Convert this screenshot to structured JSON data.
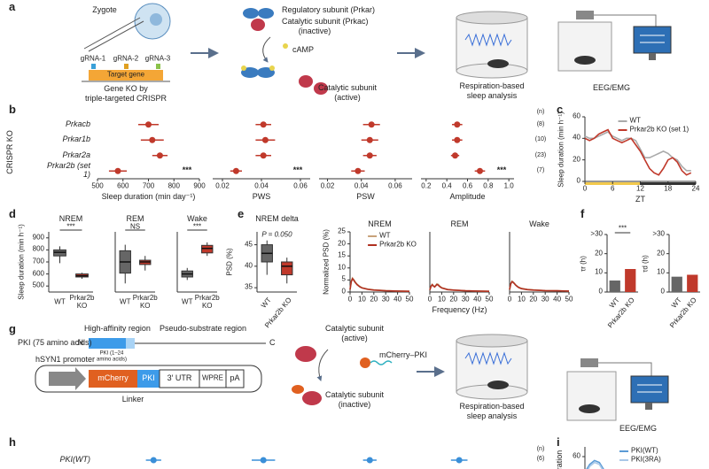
{
  "panel_labels": [
    "a",
    "b",
    "c",
    "d",
    "e",
    "f",
    "g",
    "h",
    "i"
  ],
  "a": {
    "zygote": "Zygote",
    "grnas": [
      "gRNA-1",
      "gRNA-2",
      "gRNA-3"
    ],
    "target_gene": "Target gene",
    "ko_caption": [
      "Gene KO by",
      "triple-targeted CRISPR"
    ],
    "regulatory": "Regulatory subunit (Prkar)",
    "catalytic_inactive": [
      "Catalytic subunit (Prkac)",
      "(inactive)"
    ],
    "camp": "cAMP",
    "catalytic_active": [
      "Catalytic subunit",
      "(active)"
    ],
    "respiration": [
      "Respiration-based",
      "sleep analysis"
    ],
    "eeg": "EEG/EMG"
  },
  "b": {
    "group_label": "CRISPR KO",
    "n_header": "(n)",
    "n": [
      "(8)",
      "(10)",
      "(23)",
      "(7)"
    ]
  },
  "g": {
    "high_affinity": "High-affinity region",
    "pseudo_substrate": "Pseudo-substrate region",
    "pki_length": "PKI (75 amino acids)",
    "n_term": "N",
    "c_term": "C",
    "pki_fragment": [
      "PKI (1–24",
      "amino acids)"
    ],
    "promoter": "hSYN1 promoter",
    "construct": [
      "mCherry",
      "PKI",
      "3′ UTR",
      "WPRE",
      "pA"
    ],
    "linker": "Linker",
    "catalytic_active": [
      "Catalytic subunit",
      "(active)"
    ],
    "fusion": "mCherry–PKI",
    "catalytic_inactive": [
      "Catalytic subunit",
      "(inactive)"
    ],
    "respiration": [
      "Respiration-based",
      "sleep analysis"
    ],
    "eeg": "EEG/EMG"
  },
  "h": {
    "n_header": "(n)",
    "n": [
      "(6)"
    ]
  },
  "i": {
    "ylabel_fragment": "ration"
  },
  "chart_data": [
    {
      "type": "dot",
      "categories": [
        "Prkacb",
        "Prkar1b",
        "Prkar2a",
        "Prkar2b (set 1)"
      ],
      "values": [
        700,
        715,
        745,
        580
      ],
      "errors": [
        40,
        45,
        30,
        35
      ],
      "xlim": [
        500,
        900
      ],
      "xticks": [
        500,
        600,
        700,
        800,
        900
      ],
      "xlabel": "Sleep duration (min day⁻¹)",
      "significance": "***",
      "color": "#c0392b"
    },
    {
      "type": "dot",
      "values": [
        0.041,
        0.042,
        0.041,
        0.027
      ],
      "errors": [
        0.004,
        0.005,
        0.004,
        0.003
      ],
      "xlim": [
        0.015,
        0.065
      ],
      "xticks": [
        0.02,
        0.04,
        0.06
      ],
      "xlabel": "PWS",
      "significance": "***",
      "color": "#c0392b"
    },
    {
      "type": "dot",
      "values": [
        0.046,
        0.045,
        0.045,
        0.038
      ],
      "errors": [
        0.005,
        0.005,
        0.004,
        0.004
      ],
      "xlim": [
        0.015,
        0.07
      ],
      "xticks": [
        0.02,
        0.04,
        0.06
      ],
      "xlabel": "PSW",
      "color": "#c0392b"
    },
    {
      "type": "dot",
      "values": [
        0.5,
        0.5,
        0.48,
        0.72
      ],
      "errors": [
        0.05,
        0.05,
        0.04,
        0.05
      ],
      "xlim": [
        0.15,
        1.05
      ],
      "xticks": [
        0.2,
        0.4,
        0.6,
        0.8,
        {
          "value": 1,
          "label": "1.0"
        }
      ],
      "xlabel": "Amplitude",
      "significance": "***",
      "color": "#c0392b"
    },
    {
      "type": "line",
      "x": [
        0,
        1,
        2,
        3,
        4,
        5,
        6,
        7,
        8,
        9,
        10,
        11,
        12,
        13,
        14,
        15,
        16,
        17,
        18,
        19,
        20,
        21,
        22,
        23
      ],
      "series": [
        {
          "name": "WT",
          "color": "#aaaaaa",
          "values": [
            42,
            40,
            40,
            42,
            44,
            46,
            42,
            40,
            38,
            40,
            40,
            38,
            30,
            22,
            22,
            24,
            26,
            28,
            26,
            22,
            20,
            14,
            10,
            10
          ]
        },
        {
          "name": "Prkar2b KO (set 1)",
          "color": "#c0392b",
          "values": [
            40,
            38,
            40,
            44,
            46,
            48,
            40,
            38,
            36,
            38,
            40,
            34,
            28,
            20,
            12,
            8,
            6,
            12,
            20,
            22,
            18,
            10,
            6,
            8
          ]
        }
      ],
      "xlim": [
        0,
        24
      ],
      "xticks": [
        0,
        6,
        12,
        18,
        24
      ],
      "ylim": [
        0,
        60
      ],
      "yticks": [
        0,
        20,
        40,
        60
      ],
      "xlabel": "ZT",
      "ylabel": "Sleep duration (min h⁻¹)",
      "legend": "upper right"
    },
    {
      "type": "box",
      "title": "NREM",
      "categories": [
        "WT",
        "Prkar2b KO"
      ],
      "colors": [
        "#666666",
        "#c0392b"
      ],
      "boxes": [
        {
          "min": 690,
          "q1": 750,
          "median": 780,
          "q3": 800,
          "max": 830
        },
        {
          "min": 560,
          "q1": 575,
          "median": 585,
          "q3": 600,
          "max": 610
        }
      ],
      "ylim": [
        450,
        950
      ],
      "yticks": [
        500,
        600,
        700,
        800,
        900
      ],
      "ylabel": "Sleep duration (min h⁻¹)",
      "significance": "***"
    },
    {
      "type": "box",
      "title": "REM",
      "categories": [
        "WT",
        "Prkar2b KO"
      ],
      "colors": [
        "#666666",
        "#c0392b"
      ],
      "boxes": [
        {
          "min": 30,
          "q1": 42,
          "median": 55,
          "q3": 68,
          "max": 75
        },
        {
          "min": 45,
          "q1": 52,
          "median": 55,
          "q3": 57,
          "max": 62
        }
      ],
      "ylim": [
        20,
        90
      ],
      "significance": "NS"
    },
    {
      "type": "box",
      "title": "Wake",
      "categories": [
        "WT",
        "Prkar2b KO"
      ],
      "colors": [
        "#666666",
        "#c0392b"
      ],
      "boxes": [
        {
          "min": 580,
          "q1": 600,
          "median": 620,
          "q3": 640,
          "max": 660
        },
        {
          "min": 740,
          "q1": 760,
          "median": 790,
          "q3": 810,
          "max": 830
        }
      ],
      "ylim": [
        500,
        900
      ],
      "significance": "***"
    },
    {
      "type": "box",
      "title": "NREM delta",
      "categories": [
        "WT",
        "Prkar2b KO"
      ],
      "colors": [
        "#666666",
        "#c0392b"
      ],
      "boxes": [
        {
          "min": 38,
          "q1": 41,
          "median": 43,
          "q3": 45,
          "max": 46
        },
        {
          "min": 36,
          "q1": 38,
          "median": 40,
          "q3": 41,
          "max": 42
        }
      ],
      "ylim": [
        34,
        48
      ],
      "yticks": [
        35,
        40,
        45
      ],
      "ylabel": "PSD (%)",
      "annotation": "P = 0.050"
    },
    {
      "type": "line",
      "title": "NREM",
      "x": [
        0,
        1,
        2,
        3,
        4,
        5,
        6,
        7,
        8,
        10,
        15,
        20,
        30,
        40,
        50
      ],
      "series": [
        {
          "name": "WT",
          "color": "#c8a27a",
          "values": [
            1,
            4.5,
            5.8,
            5.2,
            4.4,
            3.8,
            3.2,
            2.8,
            2.4,
            1.8,
            1.2,
            0.9,
            0.6,
            0.4,
            0.3
          ]
        },
        {
          "name": "Prkar2b KO",
          "color": "#b03020",
          "values": [
            1,
            4.2,
            5.5,
            5,
            4.2,
            3.6,
            3,
            2.6,
            2.2,
            1.7,
            1.1,
            0.8,
            0.5,
            0.4,
            0.3
          ]
        }
      ],
      "xlim": [
        0,
        50
      ],
      "xticks": [
        0,
        10,
        20,
        30,
        40,
        50
      ],
      "ylim": [
        0,
        25
      ],
      "yticks": [
        0,
        5,
        10,
        15,
        20,
        25
      ],
      "ylabel": "Normalized PSD (%)",
      "legend": "upper right"
    },
    {
      "type": "line",
      "title": "REM",
      "x": [
        0,
        1,
        2,
        3,
        4,
        5,
        6,
        7,
        8,
        10,
        15,
        20,
        30,
        40,
        50
      ],
      "series": [
        {
          "color": "#c8a27a",
          "values": [
            0.8,
            2.5,
            3.2,
            2.6,
            2.2,
            2.8,
            3.4,
            3.2,
            2.6,
            1.8,
            1.1,
            0.8,
            0.5,
            0.4,
            0.3
          ]
        },
        {
          "color": "#b03020",
          "values": [
            0.8,
            2.3,
            3,
            2.5,
            2.1,
            2.6,
            3.1,
            2.9,
            2.4,
            1.7,
            1,
            0.8,
            0.5,
            0.4,
            0.3
          ]
        }
      ],
      "xlim": [
        0,
        50
      ],
      "xticks": [
        0,
        10,
        20,
        30,
        40,
        50
      ],
      "ylim": [
        0,
        25
      ],
      "xlabel": "Frequency (Hz)"
    },
    {
      "type": "line",
      "title": "Wake",
      "x": [
        0,
        1,
        2,
        3,
        4,
        5,
        6,
        7,
        8,
        10,
        15,
        20,
        30,
        40,
        50
      ],
      "series": [
        {
          "color": "#c8a27a",
          "values": [
            1,
            3.5,
            4.5,
            4.2,
            3.6,
            3,
            2.6,
            2.2,
            1.9,
            1.5,
            1.1,
            0.9,
            0.6,
            0.5,
            0.4
          ]
        },
        {
          "color": "#b03020",
          "values": [
            1,
            3.3,
            4.3,
            4,
            3.5,
            2.9,
            2.5,
            2.1,
            1.8,
            1.4,
            1,
            0.8,
            0.6,
            0.5,
            0.4
          ]
        }
      ],
      "xlim": [
        0,
        50
      ],
      "xticks": [
        0,
        10,
        20,
        30,
        40,
        50
      ],
      "ylim": [
        0,
        25
      ]
    },
    {
      "type": "bar",
      "categories": [
        "WT",
        "Prkar2b KO"
      ],
      "values": [
        6,
        12
      ],
      "colors": [
        "#666666",
        "#c0392b"
      ],
      "ylim": [
        0,
        30
      ],
      "yticks": [
        0,
        10,
        20,
        {
          "value": 30,
          "label": ">30"
        }
      ],
      "ylabel": "τr (h)",
      "significance": "***"
    },
    {
      "type": "bar",
      "categories": [
        "WT",
        "Prkar2b KO"
      ],
      "values": [
        8,
        9
      ],
      "colors": [
        "#666666",
        "#c0392b"
      ],
      "ylim": [
        0,
        30
      ],
      "yticks": [
        0,
        10,
        20,
        {
          "value": 30,
          "label": ">30"
        }
      ],
      "ylabel": "τd (h)"
    },
    {
      "type": "dot",
      "categories": [
        "PKI(WT)"
      ],
      "values": [
        720
      ],
      "errors": [
        30
      ],
      "xlim": [
        500,
        900
      ],
      "color": "#3a8fd8"
    },
    {
      "type": "dot",
      "values": [
        0.041
      ],
      "errors": [
        0.006
      ],
      "xlim": [
        0.015,
        0.065
      ],
      "color": "#3a8fd8"
    },
    {
      "type": "dot",
      "values": [
        0.045
      ],
      "errors": [
        0.004
      ],
      "xlim": [
        0.015,
        0.07
      ],
      "color": "#3a8fd8"
    },
    {
      "type": "dot",
      "values": [
        0.52
      ],
      "errors": [
        0.08
      ],
      "xlim": [
        0.15,
        1.05
      ],
      "color": "#3a8fd8"
    },
    {
      "type": "line",
      "x": [
        0,
        1,
        2,
        3,
        4,
        5
      ],
      "series": [
        {
          "name": "PKI(WT)",
          "color": "#5b9bd5",
          "values": [
            52,
            56,
            58,
            57,
            53,
            50
          ]
        },
        {
          "name": "PKI(3RA)",
          "color": "#a9c8e8",
          "values": [
            50,
            55,
            57,
            56,
            52,
            48
          ]
        }
      ],
      "xlim": [
        0,
        24
      ],
      "ylim": [
        40,
        65
      ],
      "yticks": [
        60
      ],
      "legend": "upper right"
    }
  ]
}
